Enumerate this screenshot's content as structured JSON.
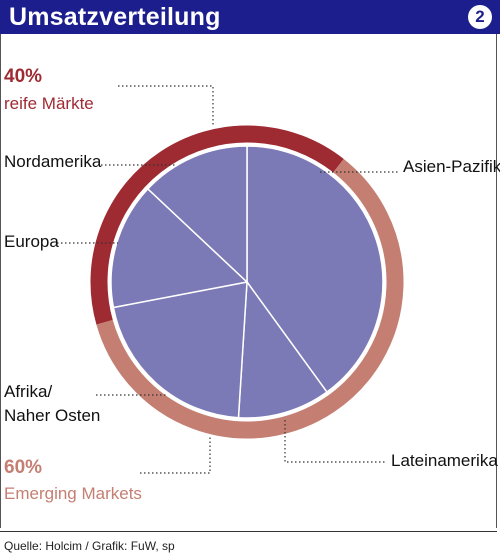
{
  "header": {
    "title": "Umsatzverteilung",
    "badge": "2"
  },
  "groups": {
    "mature": {
      "percent": "40%",
      "label": "reife Märkte",
      "color": "#9e2a32"
    },
    "emerging": {
      "percent": "60%",
      "label": "Emerging Markets",
      "color": "#c47f72"
    }
  },
  "chart_data": {
    "type": "pie",
    "title": "Umsatzverteilung",
    "slice_color": "#7b79b6",
    "categories": [
      "Asien-Pazifik",
      "Lateinamerika",
      "Afrika/ Naher Osten",
      "Europa",
      "Nordamerika"
    ],
    "values": [
      40,
      11,
      21,
      15,
      13
    ],
    "labels": {
      "asia": "Asien-Pazifik",
      "latam": "Lateinamerika",
      "africa_line1": "Afrika/",
      "africa_line2": "Naher Osten",
      "europe": "Europa",
      "namerica": "Nordamerika"
    }
  },
  "source": "Quelle: Holcim / Grafik: FuW, sp"
}
